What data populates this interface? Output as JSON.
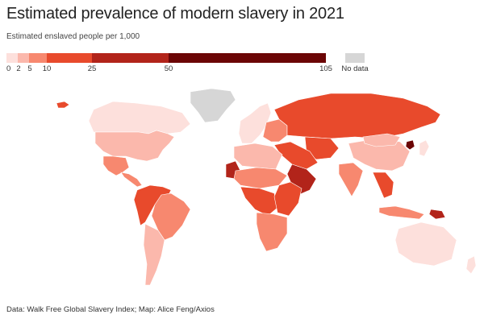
{
  "title": "Estimated prevalence of modern slavery in 2021",
  "subtitle": "Estimated enslaved people per 1,000",
  "legend": {
    "bins": [
      {
        "from": 0,
        "to": 2,
        "color": "#fde0dc"
      },
      {
        "from": 2,
        "to": 5,
        "color": "#fbb8ac"
      },
      {
        "from": 5,
        "to": 10,
        "color": "#f7886f"
      },
      {
        "from": 10,
        "to": 25,
        "color": "#e84a2c"
      },
      {
        "from": 25,
        "to": 50,
        "color": "#b2241a"
      },
      {
        "from": 50,
        "to": 105,
        "color": "#6b0505"
      }
    ],
    "ticks": [
      "0",
      "2",
      "5",
      "10",
      "25",
      "50",
      "105"
    ],
    "no_data_label": "No data",
    "no_data_color": "#d6d6d6"
  },
  "regions": [
    {
      "name": "Greenland",
      "level": "no-data"
    },
    {
      "name": "Canada",
      "level": "0-2"
    },
    {
      "name": "United States",
      "level": "2-5"
    },
    {
      "name": "Mexico",
      "level": "5-10"
    },
    {
      "name": "Central America",
      "level": "5-10"
    },
    {
      "name": "South America north",
      "level": "10-25"
    },
    {
      "name": "Brazil",
      "level": "5-10"
    },
    {
      "name": "Southern Cone",
      "level": "2-5"
    },
    {
      "name": "Iceland",
      "level": "10-25"
    },
    {
      "name": "Western Europe",
      "level": "0-2"
    },
    {
      "name": "Eastern Europe",
      "level": "5-10"
    },
    {
      "name": "Russia",
      "level": "10-25"
    },
    {
      "name": "Central Asia",
      "level": "10-25"
    },
    {
      "name": "Middle East",
      "level": "10-25"
    },
    {
      "name": "Arabian Peninsula",
      "level": "25-50"
    },
    {
      "name": "North Africa",
      "level": "2-5"
    },
    {
      "name": "Mauritania",
      "level": "25-50"
    },
    {
      "name": "Sahel",
      "level": "5-10"
    },
    {
      "name": "Central Africa",
      "level": "10-25"
    },
    {
      "name": "East Africa",
      "level": "10-25"
    },
    {
      "name": "Southern Africa",
      "level": "5-10"
    },
    {
      "name": "India",
      "level": "5-10"
    },
    {
      "name": "China",
      "level": "2-5"
    },
    {
      "name": "Mongolia",
      "level": "2-5"
    },
    {
      "name": "North Korea",
      "level": "50-105"
    },
    {
      "name": "Japan",
      "level": "0-2"
    },
    {
      "name": "Southeast Asia",
      "level": "10-25"
    },
    {
      "name": "Indonesia",
      "level": "5-10"
    },
    {
      "name": "Papua New Guinea",
      "level": "25-50"
    },
    {
      "name": "Australia",
      "level": "0-2"
    },
    {
      "name": "New Zealand",
      "level": "0-2"
    }
  ],
  "source": "Data: Walk Free Global Slavery Index; Map: Alice Feng/Axios"
}
